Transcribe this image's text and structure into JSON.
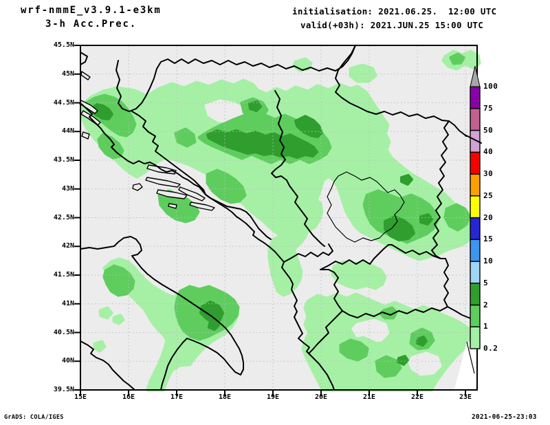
{
  "header": {
    "title_line1": "wrf-nmmE_v3.9.1-e3km",
    "title_line2": "3-h Acc.Prec.",
    "init_line": "initialisation: 2021.06.25.  12:00 UTC",
    "valid_line": "valid(+03h): 2021.JUN.25 15:00 UTC"
  },
  "footer": {
    "left": "GrADS: COLA/IGES",
    "right": "2021-06-25-23:03"
  },
  "map": {
    "lat_labels": [
      "45.5N",
      "45N",
      "44.5N",
      "44N",
      "43.5N",
      "43N",
      "42.5N",
      "42N",
      "41.5N",
      "41N",
      "40.5N",
      "40N",
      "39.5N"
    ],
    "lon_labels": [
      "15E",
      "16E",
      "17E",
      "18E",
      "19E",
      "20E",
      "21E",
      "22E",
      "23E"
    ],
    "background_color": "#ececec",
    "grid_color": "#bdbdbd"
  },
  "colorbar": {
    "levels": [
      "0.2",
      "1",
      "2",
      "5",
      "10",
      "15",
      "20",
      "25",
      "30",
      "40",
      "50",
      "75",
      "100"
    ],
    "colors": [
      "#a5f0a5",
      "#5ecd5e",
      "#2f9e2f",
      "#9fd4f3",
      "#3e95ef",
      "#2626d2",
      "#ffff00",
      "#ff9f00",
      "#f80000",
      "#d2a2d4",
      "#c2608f",
      "#8a00a8"
    ],
    "overflow_color": "#a6a6a6"
  },
  "precip_colors": {
    "light": "#a5f0a5",
    "medium": "#5ecd5e",
    "dark": "#2f9e2f"
  }
}
